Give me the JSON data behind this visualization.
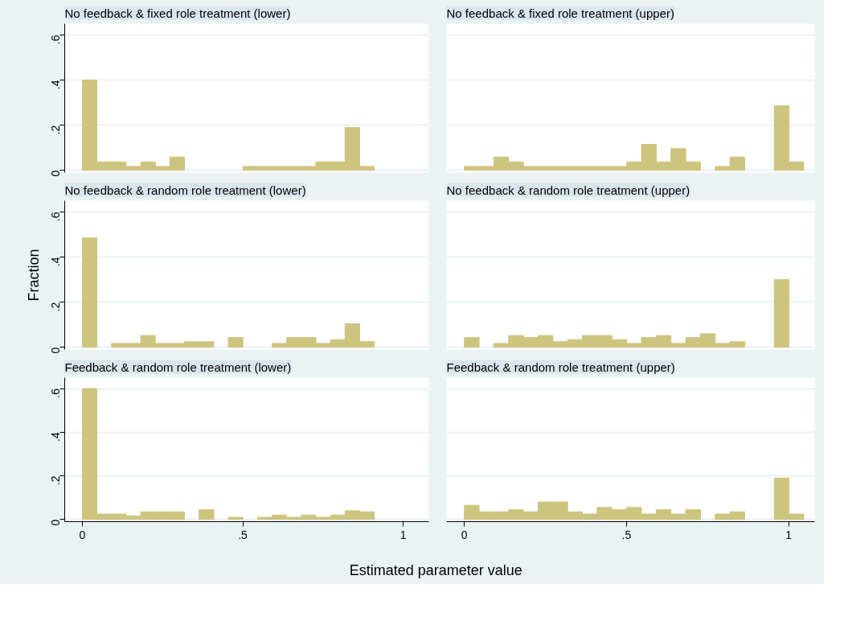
{
  "chart_data": [
    {
      "type": "histogram",
      "title": "No feedback & fixed role treatment (lower)",
      "color": "#cdc47f",
      "bins": [
        0,
        0.0455,
        0.091,
        0.1365,
        0.182,
        0.2275,
        0.273,
        0.3185,
        0.364,
        0.4095,
        0.455,
        0.5005,
        0.546,
        0.5915,
        0.637,
        0.6825,
        0.728,
        0.7735,
        0.819,
        0.8645,
        0.91
      ],
      "values": [
        0.4,
        0.037,
        0.037,
        0.017,
        0.037,
        0.017,
        0.059,
        0,
        0,
        0,
        0,
        0.017,
        0.017,
        0.017,
        0.017,
        0.017,
        0.037,
        0.037,
        0.19,
        0.017
      ],
      "xlim": [
        -0.055,
        1.08
      ],
      "ylim": [
        -0.01,
        0.65
      ],
      "yticks": [
        0,
        {
          "value": 0.2,
          "label": ".2"
        },
        {
          "value": 0.4,
          "label": ".4"
        },
        {
          "value": 0.6,
          "label": ".6"
        }
      ],
      "grid": "y",
      "tick_labels": "y"
    },
    {
      "type": "histogram",
      "title": "No feedback & fixed role treatment (upper)",
      "color": "#cdc47f",
      "bins": [
        0,
        0.0455,
        0.091,
        0.1365,
        0.182,
        0.2275,
        0.273,
        0.3185,
        0.364,
        0.4095,
        0.455,
        0.5005,
        0.546,
        0.5915,
        0.637,
        0.6825,
        0.728,
        0.7735,
        0.819,
        0.8645,
        0.91,
        0.9555,
        1.001,
        1.0465
      ],
      "values": [
        0.017,
        0.017,
        0.059,
        0.037,
        0.017,
        0.017,
        0.017,
        0.017,
        0.017,
        0.017,
        0.017,
        0.037,
        0.115,
        0.037,
        0.096,
        0.037,
        0,
        0.017,
        0.059,
        0,
        0,
        0.286,
        0.037
      ],
      "xlim": [
        -0.055,
        1.08
      ],
      "ylim": [
        -0.01,
        0.65
      ],
      "yticks": [
        {
          "value": 0,
          "label": null
        },
        {
          "value": 0.2,
          "label": null
        },
        {
          "value": 0.4,
          "label": null
        },
        {
          "value": 0.6,
          "label": null
        }
      ],
      "grid": "y",
      "tick_labels": false
    },
    {
      "type": "histogram",
      "title": "No feedback & random role treatment (lower)",
      "ylabel": "Fraction",
      "color": "#cdc47f",
      "bins": [
        0,
        0.0455,
        0.091,
        0.1365,
        0.182,
        0.2275,
        0.273,
        0.3185,
        0.364,
        0.4095,
        0.455,
        0.5005,
        0.546,
        0.5915,
        0.637,
        0.6825,
        0.728,
        0.7735,
        0.819,
        0.8645,
        0.91
      ],
      "values": [
        0.485,
        0,
        0.017,
        0.017,
        0.052,
        0.017,
        0.017,
        0.025,
        0.025,
        0,
        0.043,
        0,
        0,
        0.017,
        0.043,
        0.043,
        0.017,
        0.034,
        0.104,
        0.025
      ],
      "xlim": [
        -0.055,
        1.08
      ],
      "ylim": [
        -0.01,
        0.65
      ],
      "yticks": [
        0,
        {
          "value": 0.2,
          "label": ".2"
        },
        {
          "value": 0.4,
          "label": ".4"
        },
        {
          "value": 0.6,
          "label": ".6"
        }
      ],
      "grid": "y",
      "tick_labels": "y"
    },
    {
      "type": "histogram",
      "title": "No feedback & random role treatment (upper)",
      "color": "#cdc47f",
      "bins": [
        0,
        0.0455,
        0.091,
        0.1365,
        0.182,
        0.2275,
        0.273,
        0.3185,
        0.364,
        0.4095,
        0.455,
        0.5005,
        0.546,
        0.5915,
        0.637,
        0.6825,
        0.728,
        0.7735,
        0.819,
        0.8645,
        0.91,
        0.9555,
        1.001,
        1.0465
      ],
      "values": [
        0.043,
        0,
        0.017,
        0.052,
        0.043,
        0.052,
        0.025,
        0.034,
        0.052,
        0.052,
        0.034,
        0.017,
        0.043,
        0.052,
        0.017,
        0.043,
        0.06,
        0.017,
        0.025,
        0,
        0,
        0.3,
        0
      ],
      "xlim": [
        -0.055,
        1.08
      ],
      "ylim": [
        -0.01,
        0.65
      ],
      "yticks": [
        {
          "value": 0,
          "label": null
        },
        {
          "value": 0.2,
          "label": null
        },
        {
          "value": 0.4,
          "label": null
        },
        {
          "value": 0.6,
          "label": null
        }
      ],
      "grid": "y",
      "tick_labels": false
    },
    {
      "type": "histogram",
      "title": "Feedback & random role treatment (lower)",
      "xlabel": "Estimated parameter value",
      "color": "#cdc47f",
      "bins": [
        0,
        0.0455,
        0.091,
        0.1365,
        0.182,
        0.2275,
        0.273,
        0.3185,
        0.364,
        0.4095,
        0.455,
        0.5005,
        0.546,
        0.5915,
        0.637,
        0.6825,
        0.728,
        0.7735,
        0.819,
        0.8645,
        0.91
      ],
      "values": [
        0.6,
        0.025,
        0.025,
        0.017,
        0.035,
        0.035,
        0.035,
        0,
        0.045,
        0,
        0.01,
        0,
        0.01,
        0.02,
        0.01,
        0.02,
        0.01,
        0.02,
        0.04,
        0.035
      ],
      "xlim": [
        -0.055,
        1.08
      ],
      "ylim": [
        -0.01,
        0.65
      ],
      "xticks": [
        0,
        {
          "value": 0.5,
          "label": ".5"
        },
        1
      ],
      "yticks": [
        0,
        {
          "value": 0.2,
          "label": ".2"
        },
        {
          "value": 0.4,
          "label": ".4"
        },
        {
          "value": 0.6,
          "label": ".6"
        }
      ],
      "grid": "y"
    },
    {
      "type": "histogram",
      "title": "Feedback & random role treatment (upper)",
      "color": "#cdc47f",
      "bins": [
        0,
        0.0455,
        0.091,
        0.1365,
        0.182,
        0.2275,
        0.273,
        0.3185,
        0.364,
        0.4095,
        0.455,
        0.5005,
        0.546,
        0.5915,
        0.637,
        0.6825,
        0.728,
        0.7735,
        0.819,
        0.8645,
        0.91,
        0.9555,
        1.001,
        1.0465
      ],
      "values": [
        0.065,
        0.035,
        0.035,
        0.045,
        0.035,
        0.08,
        0.08,
        0.035,
        0.025,
        0.055,
        0.045,
        0.055,
        0.025,
        0.045,
        0.025,
        0.045,
        0,
        0.025,
        0.035,
        0,
        0,
        0.19,
        0.025
      ],
      "xlim": [
        -0.055,
        1.08
      ],
      "ylim": [
        -0.01,
        0.65
      ],
      "xticks": [
        0,
        {
          "value": 0.5,
          "label": ".5"
        },
        1
      ],
      "yticks": [
        {
          "value": 0,
          "label": null
        },
        {
          "value": 0.2,
          "label": null
        },
        {
          "value": 0.4,
          "label": null
        },
        {
          "value": 0.6,
          "label": null
        }
      ],
      "grid": "y",
      "tick_labels": "x"
    }
  ]
}
